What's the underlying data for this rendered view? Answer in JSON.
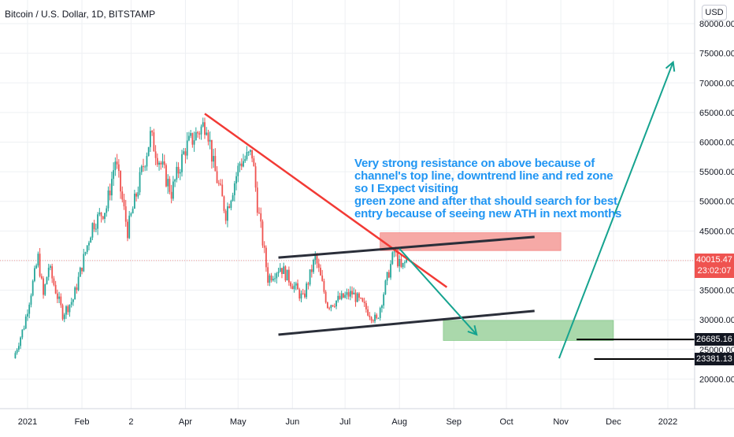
{
  "chart_title": "Bitcoin / U.S. Dollar, 1D, BITSTAMP",
  "currency": "USD",
  "accent_colors": {
    "up": "#26a69a",
    "down": "#ef5350",
    "trendline": "#f23a35",
    "channel": "#2a2e39",
    "resistance_zone": "#f5a09c",
    "support_zone": "#a5d6a7",
    "arrow": "#15a38f",
    "annotation_text": "#2196f3",
    "last_price_tag": "#ef5350"
  },
  "annotation": {
    "lines": [
      "Very strong resistance on above because of",
      "channel's top line, downtrend line and red zone",
      "so I Expect visiting",
      "green zone and after that should search for best",
      "entry because of seeing new ATH in next months"
    ]
  },
  "price_tags": {
    "last_price": "40015.47",
    "countdown": "23:02:07",
    "level_1": "26685.16",
    "level_2": "23381.13"
  },
  "chart_data": {
    "type": "candlestick",
    "title": "Bitcoin / U.S. Dollar, 1D, BITSTAMP",
    "ylim": [
      15000,
      82000
    ],
    "y_ticks": [
      20000,
      25000,
      30000,
      35000,
      40000,
      45000,
      50000,
      55000,
      60000,
      65000,
      70000,
      75000,
      80000
    ],
    "y_tick_labels": [
      "20000.00",
      "25000.00",
      "30000.00",
      "35000.00",
      "40000.00",
      "45000.00",
      "50000.00",
      "55000.00",
      "60000.00",
      "65000.00",
      "70000.00",
      "75000.00",
      "80000.00"
    ],
    "x_tick_labels": [
      "2021",
      "Feb",
      "2",
      "Apr",
      "May",
      "Jun",
      "Jul",
      "Aug",
      "Sep",
      "Oct",
      "Nov",
      "Dec",
      "2022"
    ],
    "x_tick_dates": [
      "2021-01-01",
      "2021-02-01",
      "2021-03-01",
      "2021-04-01",
      "2021-05-01",
      "2021-06-01",
      "2021-07-01",
      "2021-08-01",
      "2021-09-01",
      "2021-10-01",
      "2021-11-01",
      "2021-12-01",
      "2022-01-01"
    ],
    "last_price": 40015.47,
    "levels": [
      26685.16,
      23381.13
    ],
    "anchors": [
      [
        "2020-12-25",
        23500
      ],
      [
        "2020-12-31",
        29000
      ],
      [
        "2021-01-08",
        40500
      ],
      [
        "2021-01-11",
        34000
      ],
      [
        "2021-01-14",
        39000
      ],
      [
        "2021-01-22",
        31000
      ],
      [
        "2021-01-28",
        33500
      ],
      [
        "2021-02-08",
        46000
      ],
      [
        "2021-02-16",
        49000
      ],
      [
        "2021-02-21",
        57000
      ],
      [
        "2021-02-28",
        45000
      ],
      [
        "2021-03-13",
        61000
      ],
      [
        "2021-03-25",
        51500
      ],
      [
        "2021-04-02",
        59000
      ],
      [
        "2021-04-14",
        63500
      ],
      [
        "2021-04-18",
        56000
      ],
      [
        "2021-04-25",
        48000
      ],
      [
        "2021-05-03",
        56500
      ],
      [
        "2021-05-10",
        58000
      ],
      [
        "2021-05-13",
        49500
      ],
      [
        "2021-05-19",
        37000
      ],
      [
        "2021-05-26",
        39000
      ],
      [
        "2021-06-01",
        36500
      ],
      [
        "2021-06-08",
        33500
      ],
      [
        "2021-06-15",
        40500
      ],
      [
        "2021-06-22",
        32500
      ],
      [
        "2021-07-06",
        34500
      ],
      [
        "2021-07-20",
        29800
      ],
      [
        "2021-07-26",
        37000
      ],
      [
        "2021-07-30",
        41500
      ],
      [
        "2021-08-03",
        38500
      ],
      [
        "2021-08-06",
        40015
      ]
    ],
    "drawings": {
      "downtrend_line": [
        [
          "2021-04-12",
          64800
        ],
        [
          "2021-08-28",
          35500
        ]
      ],
      "channel_top": [
        [
          "2021-05-24",
          40500
        ],
        [
          "2021-10-17",
          44000
        ]
      ],
      "channel_bottom": [
        [
          "2021-05-24",
          27500
        ],
        [
          "2021-10-17",
          31500
        ]
      ],
      "resistance_zone": {
        "x": [
          "2021-07-21",
          "2021-11-01"
        ],
        "y": [
          41700,
          44700
        ]
      },
      "support_zone": {
        "x": [
          "2021-08-26",
          "2021-12-01"
        ],
        "y": [
          26500,
          29900
        ]
      },
      "arrow_down": [
        [
          "2021-08-01",
          42000
        ],
        [
          "2021-09-14",
          27500
        ]
      ],
      "arrow_up": [
        [
          "2021-10-31",
          23500
        ],
        [
          "2022-01-04",
          73500
        ]
      ],
      "level_lines": [
        {
          "value": 26685.16,
          "from": "2021-11-10"
        },
        {
          "value": 23381.13,
          "from": "2021-11-20"
        }
      ]
    }
  }
}
